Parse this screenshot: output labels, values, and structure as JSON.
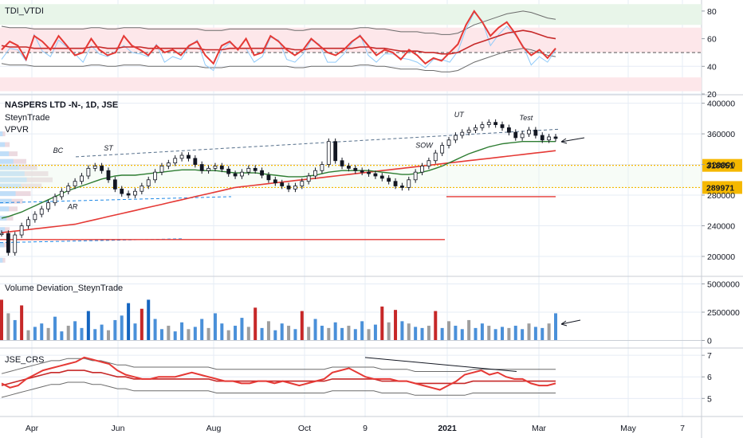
{
  "chart_data": [
    {
      "type": "line",
      "title": "TDI_VTDI",
      "ylim": [
        20,
        88
      ],
      "yticks": [
        "80",
        "60",
        "40",
        "20"
      ],
      "series": [
        {
          "color": "#e53935",
          "values": [
            52,
            58,
            55,
            45,
            62,
            58,
            52,
            62,
            55,
            48,
            50,
            60,
            52,
            48,
            50,
            62,
            55,
            52,
            48,
            55,
            50,
            52,
            48,
            55,
            58,
            48,
            42,
            55,
            58,
            52,
            60,
            48,
            50,
            62,
            58,
            52,
            48,
            52,
            60,
            55,
            50,
            48,
            52,
            58,
            62,
            55,
            48,
            52,
            50,
            45,
            52,
            48,
            42,
            46,
            44,
            50,
            56,
            70,
            80,
            72,
            62,
            68,
            72,
            64,
            54,
            48,
            52,
            46,
            53
          ]
        },
        {
          "color": "#c62828",
          "values": [
            55,
            54,
            54,
            54,
            53,
            53,
            53,
            53,
            53,
            53,
            53,
            54,
            54,
            53,
            53,
            54,
            54,
            54,
            53,
            53,
            53,
            53,
            53,
            53,
            53,
            52,
            52,
            52,
            53,
            53,
            53,
            53,
            53,
            53,
            53,
            53,
            52,
            52,
            53,
            53,
            53,
            53,
            53,
            53,
            54,
            54,
            53,
            53,
            52,
            51,
            51,
            51,
            50,
            50,
            49,
            49,
            50,
            53,
            56,
            58,
            60,
            62,
            64,
            65,
            66,
            65,
            63,
            61,
            60
          ]
        }
      ],
      "bands": {
        "upper": [
          70,
          85
        ],
        "middle": [
          50,
          68
        ],
        "lower": [
          22,
          32
        ]
      }
    },
    {
      "type": "line",
      "title": "NASPERS LTD -N-, 1D, JSE",
      "legend": [
        "SteynTrade",
        "VPVR"
      ],
      "ylim": [
        175000,
        410000
      ],
      "yticks": [
        "400000",
        "360000",
        "320000",
        "280000",
        "240000",
        "200000"
      ],
      "series": [
        {
          "color": "#131722",
          "values": [
            230000,
            205000,
            228000,
            240000,
            248000,
            255000,
            262000,
            270000,
            278000,
            285000,
            292000,
            298000,
            305000,
            315000,
            318000,
            312000,
            300000,
            288000,
            282000,
            280000,
            285000,
            292000,
            300000,
            310000,
            318000,
            322000,
            328000,
            332000,
            328000,
            320000,
            312000,
            315000,
            318000,
            314000,
            308000,
            305000,
            310000,
            315000,
            312000,
            306000,
            300000,
            296000,
            292000,
            288000,
            292000,
            298000,
            305000,
            312000,
            320000,
            350000,
            325000,
            318000,
            315000,
            312000,
            310000,
            308000,
            305000,
            302000,
            298000,
            292000,
            290000,
            300000,
            310000,
            318000,
            325000,
            335000,
            345000,
            352000,
            358000,
            362000,
            365000,
            368000,
            372000,
            375000,
            372000,
            368000,
            362000,
            355000,
            360000,
            365000,
            358000,
            352000,
            356000,
            354000
          ]
        },
        {
          "color": "#2e7d32",
          "values": [
            250000,
            252000,
            255000,
            258000,
            262000,
            266000,
            270000,
            274000,
            278000,
            282000,
            286000,
            289000,
            292000,
            295000,
            298000,
            301000,
            303000,
            305000,
            306000,
            306000,
            306000,
            307000,
            308000,
            309000,
            310000,
            311000,
            312000,
            313000,
            313000,
            313000,
            312000,
            312000,
            312000,
            311000,
            310000,
            309000,
            309000,
            309000,
            309000,
            308000,
            307000,
            306000,
            305000,
            304000,
            304000,
            304000,
            305000,
            306000,
            308000,
            310000,
            311000,
            312000,
            312000,
            312000,
            312000,
            312000,
            311000,
            310000,
            309000,
            308000,
            307000,
            307000,
            308000,
            310000,
            312000,
            315000,
            318000,
            322000,
            326000,
            330000,
            334000,
            337000,
            340000,
            343000,
            345000,
            347000,
            348000,
            349000,
            350000,
            350000,
            350000,
            350000,
            350000,
            350000
          ]
        },
        {
          "color": "#e53935",
          "values": [
            231000,
            232000,
            233000,
            234000,
            235000,
            236000,
            237000,
            238000,
            239000,
            240000,
            241000,
            242000,
            244000,
            246000,
            248000,
            250000,
            252000,
            254000,
            256000,
            258000,
            260000,
            262000,
            264000,
            266000,
            268000,
            270000,
            272000,
            274000,
            276000,
            278000,
            280000,
            282000,
            284000,
            286000,
            288000,
            290000,
            291000,
            292000,
            293000,
            294000,
            295000,
            296000,
            297000,
            298000,
            299000,
            300000,
            301000,
            302000,
            303000,
            304000,
            305000,
            306000,
            307000,
            308000,
            309000,
            310000,
            311000,
            312000,
            313000,
            314000,
            315000,
            316000,
            317000,
            318000,
            319000,
            320000,
            321000,
            322000,
            323000,
            324000,
            325000,
            326000,
            327000,
            328000,
            329000,
            330000,
            331000,
            332000,
            333000,
            334000,
            335000,
            336000,
            337000,
            338000
          ]
        }
      ],
      "price_labels": [
        {
          "value": 318851,
          "text": "318851",
          "color": "#f5b800"
        },
        {
          "value": 289971,
          "text": "289971",
          "color": "#f5b800"
        }
      ],
      "annotations": [
        {
          "text": "BC",
          "x": 0.22,
          "value": 335000
        },
        {
          "text": "ST",
          "x": 0.43,
          "value": 338000
        },
        {
          "text": "AR",
          "x": 0.28,
          "value": 262000
        },
        {
          "text": "SOW",
          "x": 1.72,
          "value": 342000
        },
        {
          "text": "UT",
          "x": 1.88,
          "value": 382000
        },
        {
          "text": "Test",
          "x": 2.15,
          "value": 378000
        }
      ]
    },
    {
      "type": "bar",
      "title": "Volume Deviation_SteynTrade",
      "ylim": [
        -600000,
        5600000
      ],
      "yticks": [
        "5000000",
        "2500000",
        "0"
      ],
      "values": [
        3600000,
        2400000,
        1800000,
        3100000,
        900000,
        1200000,
        1500000,
        1100000,
        2100000,
        800000,
        1300000,
        1700000,
        1100000,
        2600000,
        1000000,
        1400000,
        900000,
        1800000,
        2200000,
        3300000,
        1500000,
        2800000,
        3600000,
        1900000,
        1000000,
        1300000,
        800000,
        1600000,
        1000000,
        1200000,
        1900000,
        1100000,
        2400000,
        1500000,
        900000,
        1300000,
        2000000,
        1200000,
        2900000,
        1100000,
        1700000,
        900000,
        1500000,
        1300000,
        1000000,
        2600000,
        1200000,
        1900000,
        1300000,
        1100000,
        1600000,
        1100000,
        1300000,
        1000000,
        1700000,
        1000000,
        1400000,
        3000000,
        1600000,
        2700000,
        1700000,
        1500000,
        1200000,
        1100000,
        1300000,
        2600000,
        1100000,
        1700000,
        1300000,
        1000000,
        1800000,
        1100000,
        1500000,
        1300000,
        1000000,
        1200000,
        1100000,
        1300000,
        1000000,
        1500000,
        1200000,
        1100000,
        1500000,
        2400000
      ]
    },
    {
      "type": "line",
      "title": "JSE_CRS",
      "ylim": [
        4.2,
        7.3
      ],
      "yticks": [
        "7",
        "6",
        "5"
      ],
      "series": [
        {
          "color": "#e53935",
          "values": [
            5.7,
            5.5,
            5.6,
            5.9,
            6.1,
            6.3,
            6.4,
            6.5,
            6.6,
            6.7,
            6.9,
            6.8,
            6.7,
            6.6,
            6.3,
            6.1,
            6.0,
            5.9,
            5.9,
            6.0,
            6.0,
            6.0,
            6.1,
            6.2,
            6.1,
            6.0,
            5.9,
            5.8,
            5.8,
            5.7,
            5.7,
            5.8,
            5.8,
            5.7,
            5.8,
            5.7,
            5.6,
            5.7,
            5.8,
            5.9,
            6.2,
            6.3,
            6.4,
            6.2,
            6.0,
            5.9,
            5.9,
            5.9,
            5.8,
            5.8,
            5.7,
            5.6,
            5.5,
            5.4,
            5.6,
            5.8,
            6.1,
            6.2,
            6.3,
            6.1,
            6.2,
            6.0,
            5.9,
            5.9,
            5.7,
            5.6,
            5.6,
            5.7
          ]
        },
        {
          "color": "#c62828",
          "values": [
            5.6,
            5.7,
            5.8,
            5.9,
            6.0,
            6.1,
            6.2,
            6.2,
            6.3,
            6.3,
            6.3,
            6.2,
            6.2,
            6.1,
            6.0,
            6.0,
            5.9,
            5.9,
            5.9,
            5.9,
            5.9,
            5.9,
            5.9,
            5.9,
            5.9,
            5.9,
            5.8,
            5.8,
            5.8,
            5.8,
            5.8,
            5.8,
            5.8,
            5.8,
            5.8,
            5.8,
            5.8,
            5.8,
            5.8,
            5.8,
            5.9,
            5.9,
            5.9,
            5.9,
            5.9,
            5.9,
            5.8,
            5.8,
            5.8,
            5.8,
            5.7,
            5.7,
            5.7,
            5.7,
            5.7,
            5.7,
            5.7,
            5.8,
            5.8,
            5.8,
            5.8,
            5.8,
            5.8,
            5.8,
            5.8,
            5.8,
            5.8,
            5.8
          ]
        }
      ]
    }
  ],
  "x_axis": {
    "ticks": [
      "Apr",
      "Jun",
      "Aug",
      "Oct",
      "9",
      "2021",
      "Mar",
      "May",
      "7"
    ]
  },
  "colors": {
    "up": "#131722",
    "down": "#131722",
    "sma_green": "#2e7d32",
    "sma_red": "#e53935",
    "grid": "#e6ecf5"
  }
}
